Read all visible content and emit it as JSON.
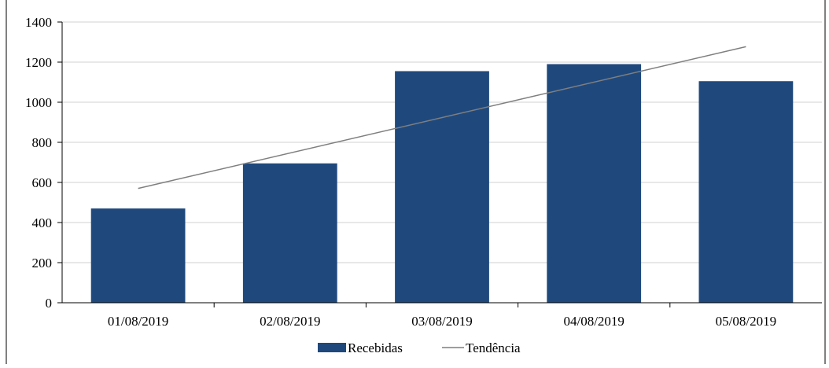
{
  "chart_data": {
    "type": "bar",
    "title": "",
    "xlabel": "",
    "ylabel": "",
    "categories": [
      "01/08/2019",
      "02/08/2019",
      "03/08/2019",
      "04/08/2019",
      "05/08/2019"
    ],
    "series": [
      {
        "name": "Recebidas",
        "values": [
          470,
          695,
          1155,
          1190,
          1105
        ]
      }
    ],
    "trendline": {
      "name": "Tendência",
      "type": "linear",
      "start": 570,
      "end": 1277
    },
    "ylim": [
      0,
      1400
    ],
    "yticks": [
      0,
      200,
      400,
      600,
      800,
      1000,
      1200,
      1400
    ],
    "grid": true,
    "legend": "bottom",
    "colors": {
      "bar": "#1f497d",
      "trend": "#7f7f7f",
      "grid": "#d9d9d9",
      "axis": "#000000"
    }
  }
}
